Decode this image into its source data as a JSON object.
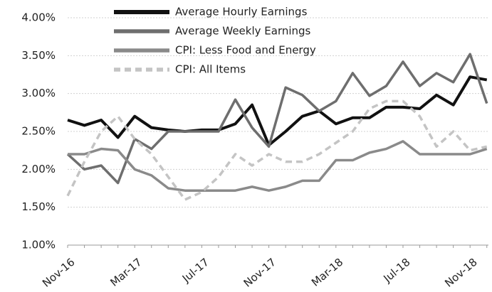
{
  "chart_data": {
    "type": "line",
    "categories": [
      "Nov-16",
      null,
      null,
      null,
      "Mar-17",
      null,
      null,
      null,
      "Jul-17",
      null,
      null,
      null,
      "Nov-17",
      null,
      null,
      null,
      "Mar-18",
      null,
      null,
      null,
      "Jul-18",
      null,
      null,
      null,
      "Nov-18",
      null
    ],
    "series": [
      {
        "name": "Average Hourly Earnings",
        "color": "#111111",
        "width": 4,
        "dash": false,
        "values": [
          2.65,
          2.58,
          2.65,
          2.42,
          2.7,
          2.55,
          2.52,
          2.5,
          2.52,
          2.52,
          2.6,
          2.85,
          2.32,
          2.5,
          2.7,
          2.77,
          2.6,
          2.68,
          2.68,
          2.82,
          2.82,
          2.8,
          2.98,
          2.85,
          3.22,
          3.18
        ]
      },
      {
        "name": "Average Weekly Earnings",
        "color": "#6e6e6e",
        "width": 3.5,
        "dash": false,
        "values": [
          2.2,
          2.0,
          2.05,
          1.82,
          2.4,
          2.27,
          2.5,
          2.5,
          2.5,
          2.5,
          2.92,
          2.55,
          2.3,
          3.08,
          2.98,
          2.77,
          2.9,
          3.27,
          2.97,
          3.1,
          3.42,
          3.1,
          3.27,
          3.15,
          3.52,
          2.87
        ]
      },
      {
        "name": "CPI: Less Food and Energy",
        "color": "#8a8a8a",
        "width": 3.5,
        "dash": false,
        "values": [
          2.2,
          2.2,
          2.27,
          2.25,
          2.0,
          1.92,
          1.75,
          1.72,
          1.72,
          1.72,
          1.72,
          1.77,
          1.72,
          1.77,
          1.85,
          1.85,
          2.12,
          2.12,
          2.22,
          2.27,
          2.37,
          2.2,
          2.2,
          2.2,
          2.2,
          2.27
        ]
      },
      {
        "name": "CPI: All Items",
        "color": "#c4c4c4",
        "width": 3.5,
        "dash": true,
        "values": [
          1.65,
          2.1,
          2.5,
          2.7,
          2.4,
          2.2,
          1.9,
          1.6,
          1.7,
          1.9,
          2.2,
          2.05,
          2.2,
          2.1,
          2.1,
          2.2,
          2.35,
          2.5,
          2.8,
          2.9,
          2.9,
          2.7,
          2.3,
          2.5,
          2.25,
          2.3
        ]
      }
    ],
    "ylim": [
      1,
      4
    ],
    "yticks": [
      {
        "value": 1,
        "label": "1.00%"
      },
      {
        "value": 1.5,
        "label": "1.50%"
      },
      {
        "value": 2,
        "label": "2.00%"
      },
      {
        "value": 2.5,
        "label": "2.50%"
      },
      {
        "value": 3,
        "label": "3.00%"
      },
      {
        "value": 3.5,
        "label": "3.50%"
      },
      {
        "value": 4,
        "label": "4.00%"
      }
    ],
    "grid": true
  }
}
